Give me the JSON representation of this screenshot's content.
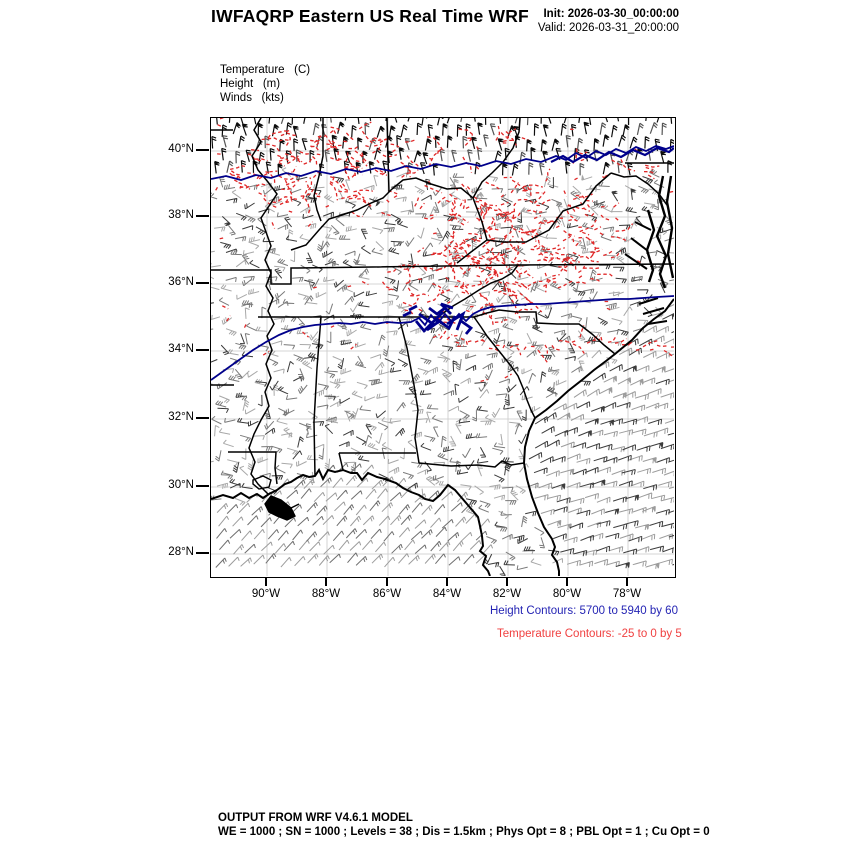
{
  "header": {
    "title": "IWFAQRP Eastern US Real Time WRF",
    "init_label": "Init: 2026-03-30_00:00:00",
    "valid_label": "Valid: 2026-03-31_20:00:00"
  },
  "variables": {
    "line1": "Temperature   (C)",
    "line2": "Height   (m)",
    "line3": "Winds   (kts)"
  },
  "map": {
    "lat_ticks": [
      "40°N",
      "38°N",
      "36°N",
      "34°N",
      "32°N",
      "30°N",
      "28°N"
    ],
    "lon_ticks": [
      "90°W",
      "88°W",
      "86°W",
      "84°W",
      "82°W",
      "80°W",
      "78°W"
    ],
    "height_contours": {
      "label": "Height Contours: 5700 to 5940 by 60",
      "min": 5700,
      "max": 5940,
      "step": 60,
      "color": "#00008b",
      "label_color": "#2424b4"
    },
    "temperature_contours": {
      "label": "Temperature Contours: -25 to 0 by 5",
      "min": -25,
      "max": 0,
      "step": 5,
      "color": "#e02828",
      "label_color": "#f04040"
    },
    "boundary_color": "#000000",
    "graticule_color": "#c9c9c9",
    "barb_colors": {
      "dark": "#0d0d0d",
      "mid": "#555555",
      "light": "#9c9c9c"
    }
  },
  "footer": {
    "line1": "OUTPUT FROM WRF V4.6.1 MODEL",
    "line2": "WE = 1000 ; SN = 1000 ; Levels = 38 ; Dis = 1.5km ; Phys Opt = 8 ; PBL Opt = 1 ; Cu Opt = 0"
  }
}
